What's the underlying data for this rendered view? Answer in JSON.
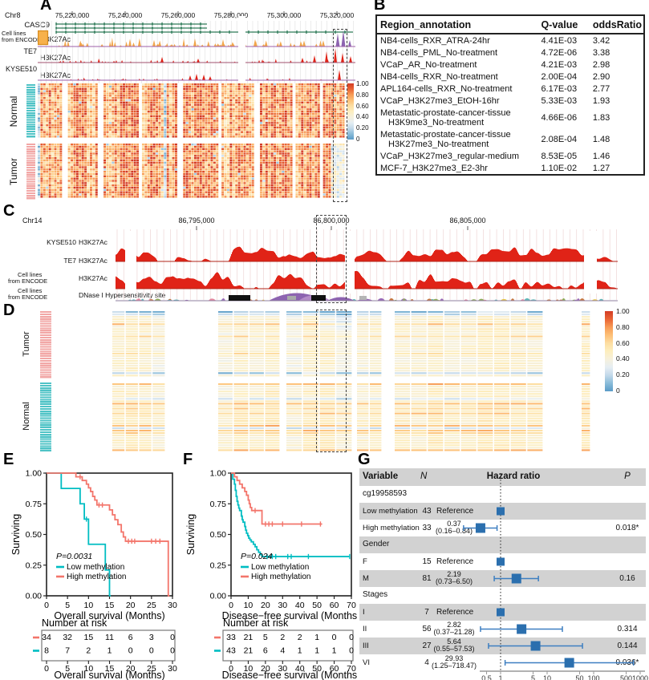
{
  "colors": {
    "km_red": "#f3756b",
    "km_teal": "#00bdc2",
    "forest_blue": "#2b6fae",
    "ci_blue": "#3e7fc1",
    "row_gray": "#d2d2d2",
    "sidebar_pink": "#f2a7a6",
    "sidebar_teal": "#4fc3c6",
    "track_red": "#e02317",
    "gene_green": "#2d7a57",
    "encode_orange": "#f2a64b",
    "encode_purple": "#8d63b0",
    "heat_max": "#d33b25",
    "heat_min": "#5a9bc7"
  },
  "panelA": {
    "label": "A",
    "chrom": "Chr8",
    "coords": [
      "75,220,000",
      "75,240,000",
      "75,260,000",
      "75,280,000",
      "75,300,000",
      "75,320,000"
    ],
    "gene": "CASC9",
    "encode_group": [
      "Cell lines",
      "from ENCODE"
    ],
    "mark": "H3K27Ac",
    "cell_lines": [
      "TE7",
      "KYSE510"
    ],
    "row_groups": [
      "Normal",
      "Tumor"
    ],
    "colorbar": [
      "1.00",
      "0.80",
      "0.60",
      "0.40",
      "0.20",
      "0"
    ],
    "heatmap": {
      "cols": 112,
      "rows_per_group": 24,
      "seed": 7,
      "gap_cols": [
        9,
        10,
        22,
        23,
        37,
        51,
        52,
        66,
        79,
        80,
        93,
        103
      ]
    }
  },
  "panelB": {
    "label": "B",
    "headers": [
      "Region_annotation",
      "Q-value",
      "oddsRatio"
    ],
    "rows": [
      [
        "NB4-cells_RXR_ATRA-24hr",
        "4.41E-03",
        "3.42"
      ],
      [
        "NB4-cells_PML_No-treatment",
        "4.72E-06",
        "3.38"
      ],
      [
        "VCaP_AR_No-treatment",
        "4.21E-03",
        "2.98"
      ],
      [
        "NB4-cells_RXR_No-treatment",
        "2.00E-04",
        "2.90"
      ],
      [
        "APL164-cells_RXR_No-treatment",
        "6.17E-03",
        "2.77"
      ],
      [
        "VCaP_H3K27me3_EtOH-16hr",
        "5.33E-03",
        "1.93"
      ],
      [
        "Metastatic-prostate-cancer-tissue H3K9me3_No-treatment",
        "4.66E-06",
        "1.83"
      ],
      [
        "Metastatic-prostate-cancer-tissue H3K27me3_No-treatment",
        "2.08E-04",
        "1.48"
      ],
      [
        "VCaP_H3K27me3_regular-medium",
        "8.53E-05",
        "1.46"
      ],
      [
        "MCF-7_H3K27me3_E2-3hr",
        "1.10E-02",
        "1.27"
      ]
    ]
  },
  "panelC": {
    "label": "C",
    "chrom": "Chr14",
    "coords": [
      "86,795,000",
      "86,800,000",
      "86,805,000"
    ],
    "tracks": [
      {
        "line": "KYSE510",
        "mark": "H3K27Ac"
      },
      {
        "line": "TE7",
        "mark": "H3K27Ac"
      },
      {
        "group": [
          "Cell lines",
          "from ENCODE"
        ],
        "mark": "H3K27Ac"
      },
      {
        "group": [
          "Cell lines",
          "from ENCODE"
        ],
        "mark": "DNase I Hypersensitivity site"
      }
    ]
  },
  "panelD": {
    "label": "D",
    "row_groups": [
      "Tumor",
      "Normal"
    ],
    "colorbar": [
      "1.00",
      "0.80",
      "0.60",
      "0.40",
      "0.20",
      "0"
    ],
    "heatmap": {
      "seed": 11,
      "blocks": [
        {
          "x": 10,
          "w": 67,
          "cols": 4
        },
        {
          "x": 142,
          "w": 78,
          "cols": 4
        },
        {
          "x": 227,
          "w": 83,
          "cols": 4
        },
        {
          "x": 315,
          "w": 32,
          "cols": 2
        },
        {
          "x": 362,
          "w": 186,
          "cols": 9
        },
        {
          "x": 595,
          "w": 12,
          "cols": 1
        }
      ]
    }
  },
  "panelE": {
    "label": "E",
    "type": "line",
    "ylabel": "Surviving",
    "xlabel": "Overall survival (Months)",
    "yticks": [
      "1.00",
      "0.75",
      "0.50",
      "0.25",
      "0.00"
    ],
    "xticks": [
      0,
      5,
      10,
      15,
      20,
      25,
      30
    ],
    "xmax": 30,
    "p_text": "P=0.0031",
    "series": [
      {
        "name": "Low methylation",
        "colorKey": "km_teal",
        "drops": [
          [
            3.5,
            0.875
          ],
          [
            8,
            0.75
          ],
          [
            9,
            0.625
          ],
          [
            10,
            0.42
          ],
          [
            14,
            0.21
          ],
          [
            15,
            0
          ]
        ],
        "end": 15.3,
        "censors": [
          [
            9.5,
            0.625
          ]
        ]
      },
      {
        "name": "High methylation",
        "colorKey": "km_red",
        "drops": [
          [
            7,
            0.97
          ],
          [
            8.5,
            0.94
          ],
          [
            9.5,
            0.91
          ],
          [
            10,
            0.88
          ],
          [
            10.5,
            0.85
          ],
          [
            11,
            0.81
          ],
          [
            11.5,
            0.78
          ],
          [
            12,
            0.74
          ],
          [
            15,
            0.7
          ],
          [
            15.7,
            0.66
          ],
          [
            16.3,
            0.62
          ],
          [
            17,
            0.58
          ],
          [
            17.8,
            0.52
          ],
          [
            18.3,
            0.48
          ],
          [
            18.8,
            0.445
          ],
          [
            29,
            0
          ]
        ],
        "end": 29.3,
        "censors": [
          [
            8,
            0.97
          ],
          [
            12.5,
            0.74
          ],
          [
            13.3,
            0.74
          ],
          [
            19.5,
            0.445
          ],
          [
            20.3,
            0.445
          ],
          [
            21,
            0.445
          ],
          [
            25,
            0.445
          ],
          [
            26,
            0.445
          ],
          [
            27,
            0.445
          ]
        ]
      }
    ],
    "risk": {
      "title": "Number at risk",
      "rows": [
        {
          "colorKey": "km_red",
          "values": [
            "34",
            "32",
            "15",
            "11",
            "6",
            "3",
            "0"
          ]
        },
        {
          "colorKey": "km_teal",
          "values": [
            "8",
            "7",
            "2",
            "1",
            "0",
            "0",
            "0"
          ]
        }
      ]
    }
  },
  "panelF": {
    "label": "F",
    "type": "line",
    "ylabel": "Surviving",
    "xlabel": "Disease−free survival (Months)",
    "yticks": [
      "1.00",
      "0.75",
      "0.50",
      "0.25",
      "0.00"
    ],
    "xticks": [
      0,
      10,
      20,
      30,
      40,
      50,
      60,
      70
    ],
    "xmax": 70,
    "p_text": "P=0.024",
    "series": [
      {
        "name": "Low methylation",
        "colorKey": "km_teal",
        "drops": [
          [
            1,
            0.95
          ],
          [
            2,
            0.91
          ],
          [
            2.5,
            0.86
          ],
          [
            3,
            0.81
          ],
          [
            3.5,
            0.77
          ],
          [
            4,
            0.74
          ],
          [
            4.5,
            0.715
          ],
          [
            5,
            0.695
          ],
          [
            6,
            0.65
          ],
          [
            6.5,
            0.62
          ],
          [
            7,
            0.6
          ],
          [
            8,
            0.565
          ],
          [
            8.5,
            0.535
          ],
          [
            9,
            0.51
          ],
          [
            9.7,
            0.49
          ],
          [
            10.3,
            0.47
          ],
          [
            11,
            0.455
          ],
          [
            11.8,
            0.44
          ],
          [
            13,
            0.42
          ],
          [
            14,
            0.4
          ],
          [
            15,
            0.375
          ],
          [
            16,
            0.355
          ],
          [
            17,
            0.335
          ],
          [
            18,
            0.32
          ]
        ],
        "end": 69,
        "censors": [
          [
            21,
            0.32
          ],
          [
            24,
            0.32
          ],
          [
            26,
            0.32
          ],
          [
            33,
            0.32
          ],
          [
            35,
            0.32
          ],
          [
            45,
            0.32
          ],
          [
            69,
            0.32
          ]
        ]
      },
      {
        "name": "High methylation",
        "colorKey": "km_red",
        "drops": [
          [
            2,
            0.97
          ],
          [
            3.5,
            0.94
          ],
          [
            5,
            0.91
          ],
          [
            6.5,
            0.88
          ],
          [
            8,
            0.85
          ],
          [
            9,
            0.82
          ],
          [
            10,
            0.78
          ],
          [
            10.6,
            0.75
          ],
          [
            11.2,
            0.72
          ],
          [
            12,
            0.695
          ],
          [
            18,
            0.585
          ]
        ],
        "end": 53,
        "censors": [
          [
            14,
            0.695
          ],
          [
            20,
            0.585
          ],
          [
            22,
            0.585
          ],
          [
            24,
            0.585
          ],
          [
            30,
            0.585
          ],
          [
            41,
            0.585
          ],
          [
            52,
            0.585
          ]
        ]
      }
    ],
    "risk": {
      "title": "Number at risk",
      "rows": [
        {
          "colorKey": "km_red",
          "values": [
            "33",
            "21",
            "5",
            "2",
            "2",
            "1",
            "0",
            "0"
          ]
        },
        {
          "colorKey": "km_teal",
          "values": [
            "43",
            "21",
            "6",
            "4",
            "1",
            "1",
            "1",
            "0"
          ]
        }
      ]
    }
  },
  "panelG": {
    "label": "G",
    "headers": {
      "variable": "Variable",
      "n": "N",
      "hr": "Hazard ratio",
      "p": "P"
    },
    "axis_ticks": [
      "0.5",
      "1",
      "5",
      "10",
      "50",
      "100",
      "500",
      "1000"
    ],
    "rows": [
      {
        "type": "group",
        "label": "cg19958593"
      },
      {
        "type": "ref",
        "label": "Low methylation",
        "n": "43",
        "text": "Reference",
        "hr": 1
      },
      {
        "type": "est",
        "label": "High methylation",
        "n": "33",
        "est": "0.37",
        "ci": "(0.16–0.84)",
        "hr": 0.37,
        "lo": 0.16,
        "hi": 0.84,
        "p": "0.018*"
      },
      {
        "type": "group",
        "label": "Gender"
      },
      {
        "type": "ref",
        "label": "F",
        "n": "15",
        "text": "Reference",
        "hr": 1
      },
      {
        "type": "est",
        "label": "M",
        "n": "81",
        "est": "2.19",
        "ci": "(0.73–6.50)",
        "hr": 2.19,
        "lo": 0.73,
        "hi": 6.5,
        "p": "0.16"
      },
      {
        "type": "group",
        "label": "Stages"
      },
      {
        "type": "ref",
        "label": "I",
        "n": "7",
        "text": "Reference",
        "hr": 1
      },
      {
        "type": "est",
        "label": "II",
        "n": "56",
        "est": "2.82",
        "ci": "(0.37–21.28)",
        "hr": 2.82,
        "lo": 0.37,
        "hi": 21.28,
        "p": "0.314"
      },
      {
        "type": "est",
        "label": "III",
        "n": "27",
        "est": "5.64",
        "ci": "(0.55–57.53)",
        "hr": 5.64,
        "lo": 0.55,
        "hi": 57.53,
        "p": "0.144"
      },
      {
        "type": "est",
        "label": "VI",
        "n": "4",
        "est": "29.93",
        "ci": "(1.25–718.47)",
        "hr": 29.93,
        "lo": 1.25,
        "hi": 718.47,
        "p": "0.036*"
      }
    ]
  }
}
